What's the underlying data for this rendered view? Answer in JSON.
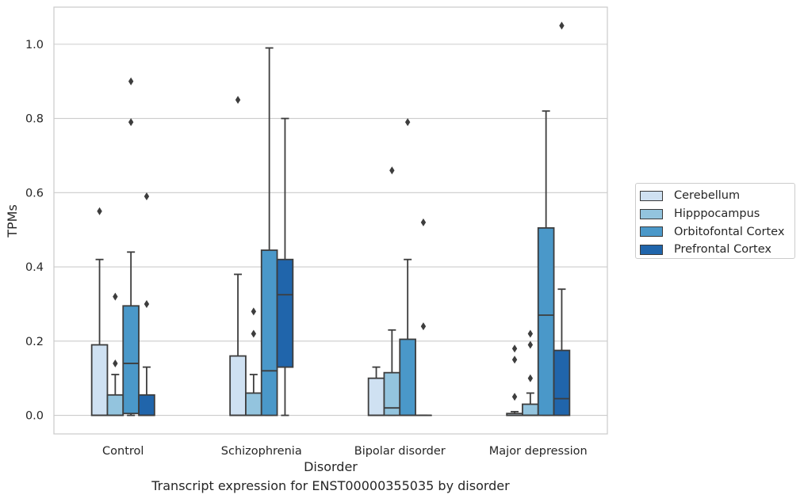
{
  "chart_data": {
    "type": "box",
    "xlabel": "Disorder",
    "ylabel": "TPMs",
    "caption": "Transcript expression for ENST00000355035 by disorder",
    "ylim": [
      -0.05,
      1.1
    ],
    "yticks": [
      0.0,
      0.2,
      0.4,
      0.6,
      0.8,
      1.0
    ],
    "ytick_labels": [
      "0.0",
      "0.2",
      "0.4",
      "0.6",
      "0.8",
      "1.0"
    ],
    "grid": "horizontal",
    "legend_position": "right, outside plot",
    "categories": [
      "Control",
      "Schizophrenia",
      "Bipolar disorder",
      "Major depression"
    ],
    "series": [
      {
        "name": "Cerebellum",
        "color": "#cfe1f2",
        "boxes": [
          {
            "whisker_low": 0.0,
            "q1": 0.0,
            "median": 0.0,
            "q3": 0.19,
            "whisker_high": 0.42,
            "outliers": [
              0.55
            ]
          },
          {
            "whisker_low": 0.0,
            "q1": 0.0,
            "median": 0.0,
            "q3": 0.16,
            "whisker_high": 0.38,
            "outliers": [
              0.85
            ]
          },
          {
            "whisker_low": 0.0,
            "q1": 0.0,
            "median": 0.0,
            "q3": 0.1,
            "whisker_high": 0.13,
            "outliers": []
          },
          {
            "whisker_low": 0.0,
            "q1": 0.0,
            "median": 0.0,
            "q3": 0.005,
            "whisker_high": 0.01,
            "outliers": [
              0.05,
              0.15,
              0.18
            ]
          }
        ]
      },
      {
        "name": "Hipppocampus",
        "color": "#93c4de",
        "boxes": [
          {
            "whisker_low": 0.0,
            "q1": 0.0,
            "median": 0.0,
            "q3": 0.055,
            "whisker_high": 0.11,
            "outliers": [
              0.14,
              0.32
            ]
          },
          {
            "whisker_low": 0.0,
            "q1": 0.0,
            "median": 0.0,
            "q3": 0.06,
            "whisker_high": 0.11,
            "outliers": [
              0.22,
              0.28
            ]
          },
          {
            "whisker_low": 0.0,
            "q1": 0.0,
            "median": 0.02,
            "q3": 0.115,
            "whisker_high": 0.23,
            "outliers": [
              0.66
            ]
          },
          {
            "whisker_low": 0.0,
            "q1": 0.0,
            "median": 0.0,
            "q3": 0.03,
            "whisker_high": 0.06,
            "outliers": [
              0.1,
              0.19,
              0.22
            ]
          }
        ]
      },
      {
        "name": "Orbitofontal Cortex",
        "color": "#4a98c9",
        "boxes": [
          {
            "whisker_low": 0.0,
            "q1": 0.005,
            "median": 0.14,
            "q3": 0.295,
            "whisker_high": 0.44,
            "outliers": [
              0.79,
              0.9
            ]
          },
          {
            "whisker_low": 0.0,
            "q1": 0.0,
            "median": 0.12,
            "q3": 0.445,
            "whisker_high": 0.99,
            "outliers": []
          },
          {
            "whisker_low": 0.0,
            "q1": 0.0,
            "median": 0.0,
            "q3": 0.205,
            "whisker_high": 0.42,
            "outliers": [
              0.79
            ]
          },
          {
            "whisker_low": 0.0,
            "q1": 0.0,
            "median": 0.27,
            "q3": 0.505,
            "whisker_high": 0.82,
            "outliers": []
          }
        ]
      },
      {
        "name": "Prefrontal Cortex",
        "color": "#2065ab",
        "boxes": [
          {
            "whisker_low": 0.0,
            "q1": 0.0,
            "median": 0.0,
            "q3": 0.055,
            "whisker_high": 0.13,
            "outliers": [
              0.3,
              0.59
            ]
          },
          {
            "whisker_low": 0.0,
            "q1": 0.13,
            "median": 0.325,
            "q3": 0.42,
            "whisker_high": 0.8,
            "outliers": []
          },
          {
            "whisker_low": 0.0,
            "q1": 0.0,
            "median": 0.0,
            "q3": 0.0,
            "whisker_high": 0.0,
            "outliers": [
              0.24,
              0.52
            ]
          },
          {
            "whisker_low": 0.0,
            "q1": 0.0,
            "median": 0.045,
            "q3": 0.175,
            "whisker_high": 0.34,
            "outliers": [
              1.05
            ]
          }
        ]
      }
    ]
  }
}
